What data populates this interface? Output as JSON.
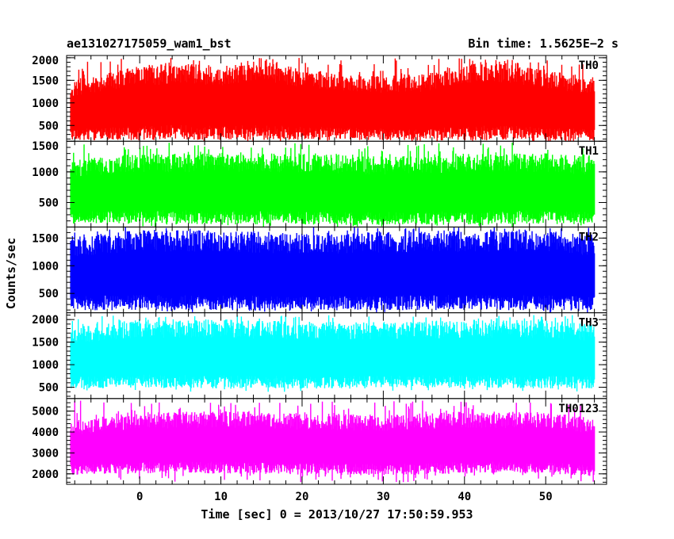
{
  "header": {
    "left_title": "ae131027175059_wam1_bst",
    "right_title": "Bin time: 1.5625E−2 s"
  },
  "chart_data": {
    "type": "line",
    "x_axis": {
      "label": "Time [sec] 0 = 2013/10/27 17:50:59.953",
      "range": [
        -9,
        57.5
      ],
      "ticks": [
        0,
        10,
        20,
        30,
        40,
        50
      ],
      "minor_step": 2
    },
    "y_axis_label": "Counts/sec",
    "data_x_range": [
      -8.5,
      56.0
    ],
    "panels": [
      {
        "name": "TH0",
        "color": "#ff0000",
        "ylim": [
          150,
          2050
        ],
        "yticks": [
          500,
          1000,
          1500,
          2000
        ],
        "ytick_labels": [
          "500",
          "1000",
          "1500",
          "2000"
        ],
        "minor_step": 100,
        "envelope_x": [
          -8.5,
          0,
          5,
          10,
          15,
          20,
          25,
          30,
          35,
          40,
          45,
          50,
          56
        ],
        "envelope_low": [
          300,
          330,
          350,
          340,
          360,
          330,
          320,
          310,
          300,
          320,
          330,
          300,
          280
        ],
        "envelope_high": [
          1300,
          1600,
          1650,
          1600,
          1750,
          1550,
          1450,
          1400,
          1450,
          1650,
          1700,
          1550,
          1350
        ],
        "spike_max": 2000,
        "spike_min": 150
      },
      {
        "name": "TH1",
        "color": "#00ff00",
        "ylim": [
          100,
          1500
        ],
        "yticks": [
          500,
          1000,
          1500
        ],
        "ytick_labels": [
          "500",
          "1000",
          "1500"
        ],
        "minor_step": 100,
        "envelope_x": [
          -8.5,
          0,
          10,
          20,
          30,
          40,
          50,
          56
        ],
        "envelope_low": [
          250,
          270,
          260,
          250,
          240,
          250,
          260,
          240
        ],
        "envelope_high": [
          1050,
          1150,
          1150,
          1150,
          1100,
          1150,
          1150,
          1100
        ],
        "spike_max": 1480,
        "spike_min": 100
      },
      {
        "name": "TH2",
        "color": "#0000ff",
        "ylim": [
          150,
          1700
        ],
        "yticks": [
          500,
          1000,
          1500
        ],
        "ytick_labels": [
          "500",
          "1000",
          "1500"
        ],
        "minor_step": 100,
        "envelope_x": [
          -8.5,
          0,
          10,
          20,
          30,
          40,
          50,
          56
        ],
        "envelope_low": [
          320,
          340,
          330,
          320,
          330,
          340,
          330,
          320
        ],
        "envelope_high": [
          1350,
          1450,
          1450,
          1400,
          1400,
          1450,
          1450,
          1350
        ],
        "spike_max": 1700,
        "spike_min": 150
      },
      {
        "name": "TH3",
        "color": "#00ffff",
        "ylim": [
          250,
          2150
        ],
        "yticks": [
          500,
          1000,
          1500,
          2000
        ],
        "ytick_labels": [
          "500",
          "1000",
          "1500",
          "2000"
        ],
        "minor_step": 100,
        "envelope_x": [
          -8.5,
          0,
          10,
          20,
          30,
          40,
          50,
          56
        ],
        "envelope_low": [
          600,
          640,
          620,
          610,
          620,
          630,
          620,
          600
        ],
        "envelope_high": [
          1650,
          1800,
          1800,
          1750,
          1750,
          1800,
          1800,
          1700
        ],
        "spike_max": 2100,
        "spike_min": 400
      },
      {
        "name": "TH0123",
        "color": "#ff00ff",
        "ylim": [
          1500,
          5600
        ],
        "yticks": [
          2000,
          3000,
          4000,
          5000
        ],
        "ytick_labels": [
          "2000",
          "3000",
          "4000",
          "5000"
        ],
        "minor_step": 200,
        "envelope_x": [
          -8.5,
          0,
          10,
          20,
          30,
          40,
          50,
          56
        ],
        "envelope_low": [
          2200,
          2300,
          2300,
          2250,
          2200,
          2300,
          2300,
          2150
        ],
        "envelope_high": [
          4200,
          4550,
          4600,
          4500,
          4450,
          4600,
          4550,
          4300
        ],
        "spike_max": 5500,
        "spike_min": 1600
      }
    ]
  }
}
